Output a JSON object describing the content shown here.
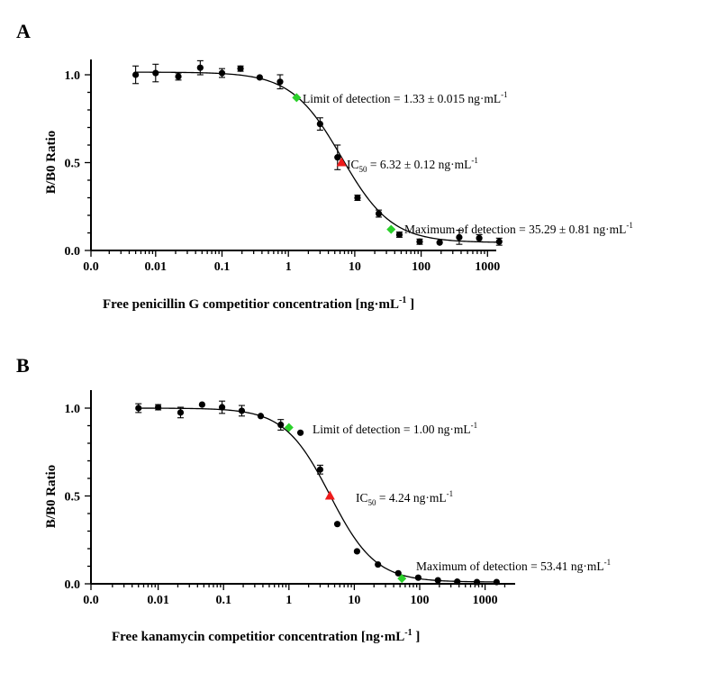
{
  "chart_data": [
    {
      "panel": "A",
      "type": "scatter",
      "xscale": "log",
      "xlabel": "Free penicillin G competitior concentration [ng·mL",
      "xlabel_sup": "-1",
      "xlabel_close": " ]",
      "ylabel": "B/B0 Ratio",
      "ylim": [
        0,
        1.1
      ],
      "yticks": [
        "0.0",
        "0.5",
        "1.0"
      ],
      "xticks": [
        "0.0",
        "0.01",
        "0.1",
        "1",
        "10",
        "100",
        "1000"
      ],
      "fit": {
        "top": 1.015,
        "bottom": 0.045,
        "ic50": 6.32,
        "hill": 1.15
      },
      "points": [
        {
          "x": 0.005,
          "y": 1.0,
          "err": 0.05
        },
        {
          "x": 0.01,
          "y": 1.01,
          "err": 0.05
        },
        {
          "x": 0.022,
          "y": 0.99,
          "err": 0.02
        },
        {
          "x": 0.047,
          "y": 1.04,
          "err": 0.04
        },
        {
          "x": 0.1,
          "y": 1.01,
          "err": 0.025
        },
        {
          "x": 0.19,
          "y": 1.035,
          "err": 0.015
        },
        {
          "x": 0.37,
          "y": 0.985,
          "err": 0
        },
        {
          "x": 0.75,
          "y": 0.96,
          "err": 0.04
        },
        {
          "x": 3.0,
          "y": 0.72,
          "err": 0.035
        },
        {
          "x": 5.5,
          "y": 0.53,
          "err": 0.07
        },
        {
          "x": 11,
          "y": 0.3,
          "err": 0.015
        },
        {
          "x": 23,
          "y": 0.21,
          "err": 0.02
        },
        {
          "x": 47,
          "y": 0.09,
          "err": 0.015
        },
        {
          "x": 95,
          "y": 0.05,
          "err": 0.015
        },
        {
          "x": 190,
          "y": 0.045,
          "err": 0
        },
        {
          "x": 375,
          "y": 0.075,
          "err": 0.04
        },
        {
          "x": 750,
          "y": 0.07,
          "err": 0.02
        },
        {
          "x": 1500,
          "y": 0.05,
          "err": 0.02
        }
      ],
      "markers": {
        "lod": {
          "x": 1.33,
          "y": 0.87
        },
        "ic50": {
          "x": 6.32,
          "y": 0.5
        },
        "mod": {
          "x": 35.29,
          "y": 0.12
        }
      },
      "annotations": {
        "lod": {
          "text": "Limit of detection = 1.33 ± 0.015 ng·mL",
          "sup": "-1"
        },
        "ic50": {
          "prefix": "IC",
          "sub": "50",
          "text": " = 6.32 ± 0.12 ng·mL",
          "sup": "-1"
        },
        "mod": {
          "text": "Maximum of detection = 35.29 ± 0.81 ng·mL",
          "sup": "-1"
        }
      }
    },
    {
      "panel": "B",
      "type": "scatter",
      "xscale": "log",
      "xlabel": "Free kanamycin competitior concentration [ng·mL",
      "xlabel_sup": "-1",
      "xlabel_close": " ]",
      "ylabel": "B/B0 Ratio",
      "ylim": [
        0,
        1.1
      ],
      "yticks": [
        "0.0",
        "0.5",
        "1.0"
      ],
      "xticks": [
        "0.0",
        "0.01",
        "0.1",
        "1",
        "10",
        "100",
        "1000"
      ],
      "fit": {
        "top": 1.0,
        "bottom": 0.01,
        "ic50": 4.24,
        "hill": 1.25
      },
      "points": [
        {
          "x": 0.005,
          "y": 1.0,
          "err": 0.025
        },
        {
          "x": 0.01,
          "y": 1.005,
          "err": 0.015
        },
        {
          "x": 0.022,
          "y": 0.975,
          "err": 0.03
        },
        {
          "x": 0.047,
          "y": 1.02,
          "err": 0
        },
        {
          "x": 0.095,
          "y": 1.005,
          "err": 0.035
        },
        {
          "x": 0.19,
          "y": 0.985,
          "err": 0.03
        },
        {
          "x": 0.37,
          "y": 0.955,
          "err": 0
        },
        {
          "x": 0.75,
          "y": 0.905,
          "err": 0.03
        },
        {
          "x": 1.5,
          "y": 0.86,
          "err": 0
        },
        {
          "x": 3.0,
          "y": 0.65,
          "err": 0.025
        },
        {
          "x": 5.5,
          "y": 0.34,
          "err": 0
        },
        {
          "x": 11,
          "y": 0.185,
          "err": 0
        },
        {
          "x": 23,
          "y": 0.11,
          "err": 0
        },
        {
          "x": 47,
          "y": 0.06,
          "err": 0
        },
        {
          "x": 95,
          "y": 0.035,
          "err": 0
        },
        {
          "x": 190,
          "y": 0.02,
          "err": 0
        },
        {
          "x": 375,
          "y": 0.012,
          "err": 0
        },
        {
          "x": 750,
          "y": 0.01,
          "err": 0
        },
        {
          "x": 1500,
          "y": 0.01,
          "err": 0
        }
      ],
      "markers": {
        "lod": {
          "x": 1.0,
          "y": 0.89
        },
        "ic50": {
          "x": 4.24,
          "y": 0.5
        },
        "mod": {
          "x": 53.41,
          "y": 0.03
        }
      },
      "annotations": {
        "lod": {
          "text": "Limit of detection = 1.00 ng·mL",
          "sup": "-1"
        },
        "ic50": {
          "prefix": "IC",
          "sub": "50",
          "text": " = 4.24 ng·mL",
          "sup": "-1"
        },
        "mod": {
          "text": "Maximum of detection = 53.41 ng·mL",
          "sup": "-1"
        }
      }
    }
  ]
}
